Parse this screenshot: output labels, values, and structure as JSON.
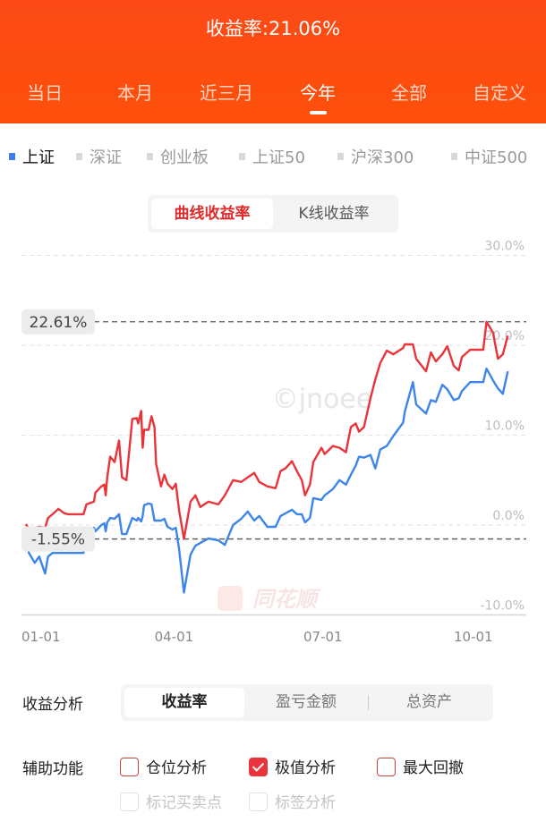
{
  "header": {
    "title": "收益率:21.06%"
  },
  "tabs": [
    {
      "label": "当日"
    },
    {
      "label": "本月"
    },
    {
      "label": "近三月"
    },
    {
      "label": "今年",
      "active": true
    },
    {
      "label": "全部"
    },
    {
      "label": "自定义"
    }
  ],
  "legend": [
    {
      "label": "上证",
      "active": true,
      "color": "#3d7ff0"
    },
    {
      "label": "深证"
    },
    {
      "label": "创业板"
    },
    {
      "label": "上证50"
    },
    {
      "label": "沪深300"
    },
    {
      "label": "中证500"
    }
  ],
  "chart_mode": {
    "curve": "曲线收益率",
    "kline": "K线收益率",
    "active": "curve"
  },
  "watermark": {
    "text": "©jnoee",
    "logo": "同花顺"
  },
  "chart_data": {
    "type": "line",
    "title": "",
    "xlabel": "",
    "ylabel": "",
    "ylim": [
      -10,
      30
    ],
    "yticks": [
      "30.0%",
      "20.0%",
      "10.0%",
      "0.0%",
      "-10.0%"
    ],
    "ytick_values": [
      30,
      20,
      10,
      0,
      -10
    ],
    "xticks": [
      "01-01",
      "04-01",
      "07-01",
      "10-01"
    ],
    "grid": true,
    "markers": {
      "max_label": "22.61%",
      "max": 22.61,
      "min_label": "-1.55%",
      "min": -1.55
    },
    "x": [
      "01-04",
      "01-06",
      "01-10",
      "01-13",
      "01-17",
      "01-19",
      "01-22",
      "01-26",
      "01-30",
      "02-02",
      "02-12",
      "02-14",
      "02-19",
      "02-20",
      "02-24",
      "02-26",
      "02-27",
      "02-28",
      "03-02",
      "03-05",
      "03-08",
      "03-10",
      "03-13",
      "03-17",
      "03-20",
      "03-21",
      "03-23",
      "03-24",
      "03-25",
      "03-28",
      "03-30",
      "04-01",
      "04-02",
      "04-05",
      "04-07",
      "04-09",
      "04-12",
      "04-14",
      "04-16",
      "04-19",
      "04-23",
      "04-26",
      "04-29",
      "05-04",
      "05-10",
      "05-14",
      "05-19",
      "05-24",
      "05-28",
      "06-01",
      "06-04",
      "06-09",
      "06-14",
      "06-17",
      "06-20",
      "06-24",
      "06-27",
      "06-30",
      "07-02",
      "07-05",
      "07-07",
      "07-12",
      "07-14",
      "07-19",
      "07-23",
      "07-27",
      "07-30",
      "08-02",
      "08-04",
      "08-07",
      "08-11",
      "08-14",
      "08-17",
      "08-21",
      "08-25",
      "08-31",
      "09-01",
      "09-06",
      "09-08",
      "09-14",
      "09-17",
      "09-20",
      "09-24",
      "09-27",
      "10-01",
      "10-04",
      "10-06",
      "10-11",
      "10-19",
      "10-21",
      "10-25",
      "10-28",
      "10-31",
      "11-03"
    ],
    "series": [
      {
        "color": "#e8343a",
        "values": [
          0.1,
          -0.5,
          -0.3,
          -0.2,
          -0.3,
          0.8,
          1.2,
          1.8,
          1.3,
          1.2,
          1.2,
          2.3,
          2.6,
          3.6,
          4.3,
          4.5,
          3.3,
          5.3,
          7.6,
          7.0,
          9.4,
          5.3,
          5.0,
          11.8,
          11.9,
          11.3,
          12.7,
          8.6,
          10.6,
          10.6,
          12.1,
          10.9,
          6.8,
          4.3,
          5.6,
          4.6,
          4.0,
          4.6,
          1.7,
          -1.55,
          2.6,
          3.3,
          2.0,
          2.6,
          2.3,
          3.3,
          5.0,
          4.8,
          5.3,
          5.8,
          4.8,
          4.3,
          4.1,
          6.0,
          6.3,
          7.1,
          6.0,
          5.0,
          3.3,
          4.5,
          7.0,
          8.6,
          7.9,
          8.8,
          8.6,
          8.1,
          10.9,
          11.3,
          10.4,
          10.9,
          14.1,
          16.2,
          18.0,
          19.4,
          19.0,
          19.7,
          20.1,
          20.1,
          18.5,
          17.1,
          19.2,
          18.2,
          19.0,
          19.9,
          17.7,
          17.2,
          18.7,
          19.5,
          19.5,
          22.61,
          21.4,
          18.5,
          19.0,
          21.06
        ]
      },
      {
        "name": "上证",
        "color": "#3d85ea",
        "values": [
          -0.7,
          -3.1,
          -4.2,
          -3.5,
          -5.4,
          -3.5,
          -3.1,
          -3.1,
          -3.1,
          -3.1,
          -3.1,
          -0.7,
          -0.3,
          -0.7,
          0.0,
          0.2,
          -0.7,
          0.3,
          0.8,
          0.7,
          1.2,
          -1.0,
          -1.0,
          0.8,
          0.5,
          0.8,
          0.4,
          1.0,
          2.2,
          2.4,
          2.3,
          0.5,
          0.5,
          0.5,
          0.7,
          -0.2,
          -0.5,
          -0.3,
          -2.6,
          -7.5,
          -3.3,
          -2.3,
          -2.0,
          -1.5,
          -1.7,
          -2.2,
          0.0,
          0.7,
          1.5,
          0.5,
          1.0,
          -0.2,
          -0.2,
          1.0,
          1.3,
          1.7,
          1.2,
          1.2,
          0.3,
          0.8,
          3.0,
          2.8,
          3.3,
          4.0,
          5.0,
          4.5,
          5.6,
          6.6,
          7.6,
          7.5,
          7.8,
          6.3,
          8.4,
          8.8,
          9.9,
          11.4,
          12.6,
          15.9,
          13.4,
          12.4,
          13.9,
          13.7,
          15.6,
          15.1,
          13.9,
          14.1,
          14.9,
          15.9,
          15.9,
          17.4,
          16.1,
          15.2,
          14.6,
          17.1
        ]
      }
    ]
  },
  "analysis": {
    "label": "收益分析",
    "options": [
      {
        "label": "收益率",
        "active": true
      },
      {
        "label": "盈亏金额"
      },
      {
        "label": "总资产"
      }
    ]
  },
  "aux": {
    "label": "辅助功能",
    "options": [
      {
        "label": "仓位分析",
        "checked": false
      },
      {
        "label": "极值分析",
        "checked": true
      },
      {
        "label": "最大回撤",
        "checked": false
      },
      {
        "label": "标记买卖点",
        "disabled": true
      },
      {
        "label": "标签分析",
        "disabled": true
      }
    ]
  }
}
